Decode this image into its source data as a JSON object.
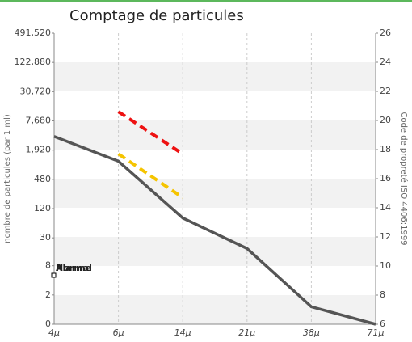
{
  "chart_data": {
    "type": "line",
    "title": "Comptage de particules",
    "ylabel": "nombre de particules (par 1 ml)",
    "y2label": "Code de propreté ISO 4406:1999",
    "categories": [
      "4μ",
      "6μ",
      "14μ",
      "21μ",
      "38μ",
      "71μ"
    ],
    "ylog": true,
    "ylim": [
      0.5,
      491520
    ],
    "yticks": [
      {
        "value": 0.5,
        "label": "0"
      },
      2,
      8,
      30,
      120,
      480,
      {
        "value": 1920,
        "label": "1,920"
      },
      {
        "value": 7680,
        "label": "7,680"
      },
      {
        "value": 30720,
        "label": "30,720"
      },
      {
        "value": 122880,
        "label": "122,880"
      },
      {
        "value": 491520,
        "label": "491,520"
      }
    ],
    "y2lim": [
      6,
      26
    ],
    "y2ticks": [
      6,
      8,
      10,
      12,
      14,
      16,
      18,
      20,
      22,
      24,
      26
    ],
    "grid": true,
    "series": [
      {
        "color": "#555555",
        "axis": "y2",
        "values": [
          18.9,
          17.2,
          13.3,
          11.2,
          7.2,
          6
        ]
      },
      {
        "name": "Alarme",
        "color": "#ee1111",
        "axis": "y2",
        "dashed": true,
        "values": [
          null,
          20.6,
          17.7,
          null,
          null,
          null
        ]
      },
      {
        "name": "Normal",
        "color": "#f5c400",
        "axis": "y2",
        "dashed": true,
        "values": [
          null,
          17.7,
          14.7,
          null,
          null,
          null
        ]
      }
    ]
  }
}
